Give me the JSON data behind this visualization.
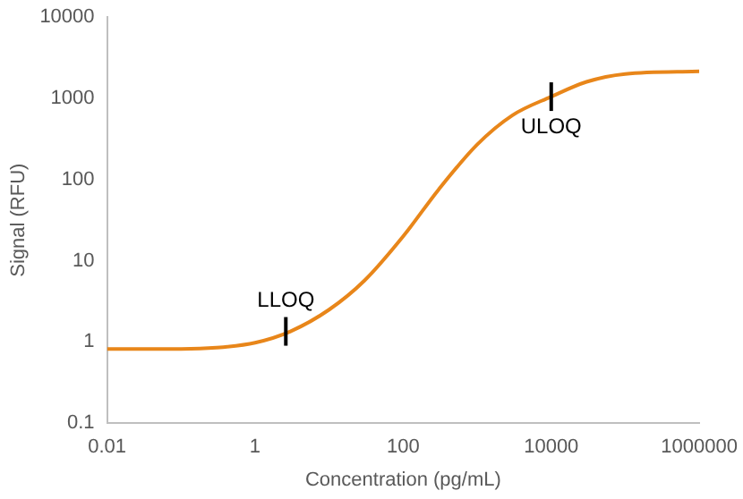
{
  "chart_data": {
    "type": "line",
    "xlabel": "Concentration (pg/mL)",
    "ylabel": "Signal (RFU)",
    "log": "xy",
    "grid": false,
    "legend": false,
    "marker": "none",
    "line_style": "solid",
    "xlim": [
      0.01,
      1000000
    ],
    "xticks": [
      0.01,
      1,
      100,
      10000,
      1000000
    ],
    "ylim": [
      0.1,
      10000
    ],
    "yticks": [
      0.1,
      1,
      10,
      100,
      1000,
      10000
    ],
    "series": [
      {
        "color": "#e8861a",
        "x": [
          0.01,
          0.1,
          0.3,
          1,
          3,
          10,
          30,
          100,
          300,
          1000,
          3000,
          10000,
          30000,
          100000,
          1000000
        ],
        "values": [
          0.82,
          0.82,
          0.85,
          0.98,
          1.35,
          2.5,
          5.7,
          20,
          75,
          270,
          620,
          1050,
          1600,
          2000,
          2150
        ]
      }
    ],
    "annotations": [
      {
        "text": "LLOQ",
        "x": 2.6,
        "y": 1.35
      },
      {
        "text": "ULOQ",
        "x": 10000,
        "y": 1050
      }
    ]
  }
}
